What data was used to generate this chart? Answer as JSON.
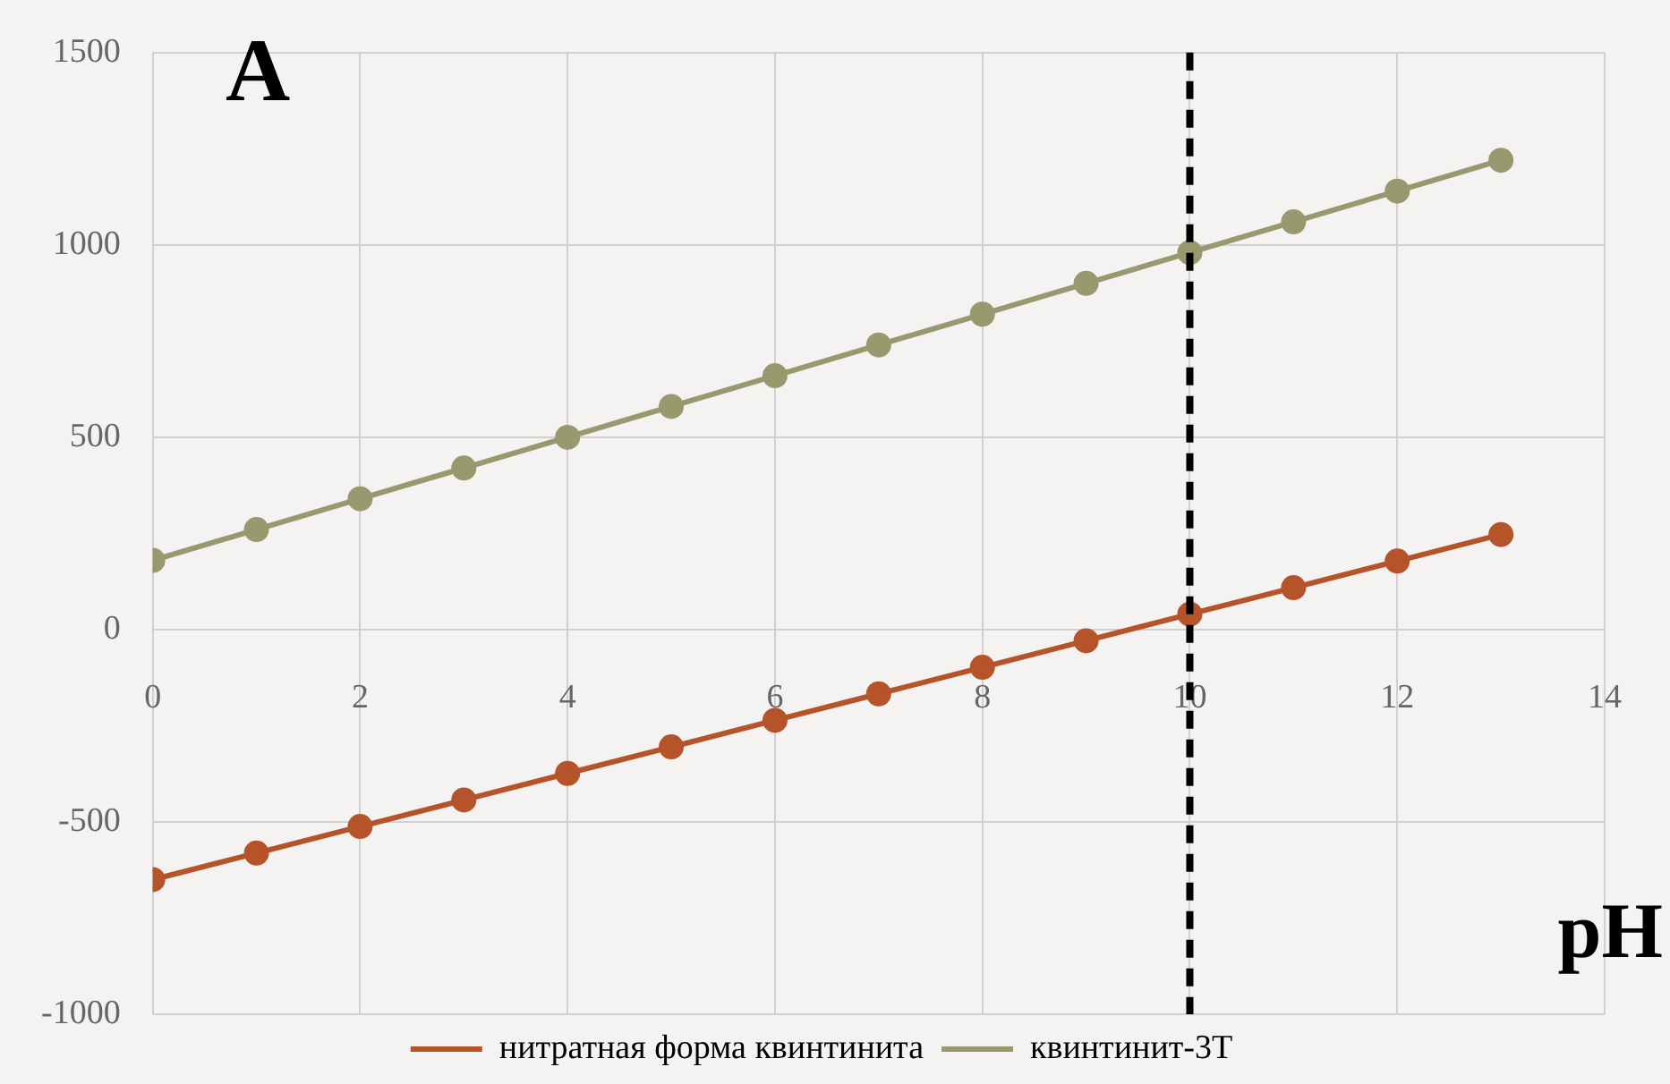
{
  "chart_data": {
    "type": "line",
    "xlabel": "pH",
    "annotations": [
      "A"
    ],
    "x": [
      0,
      1,
      2,
      3,
      4,
      5,
      6,
      7,
      8,
      9,
      10,
      11,
      12,
      13
    ],
    "series": [
      {
        "name": "нитратная форма квинтинита",
        "color": "#b5532a",
        "values": [
          -650,
          -581,
          -512,
          -443,
          -374,
          -305,
          -236,
          -167,
          -98,
          -29,
          40,
          109,
          178,
          247
        ]
      },
      {
        "name": "квинтинит-3Т",
        "color": "#999970",
        "values": [
          180,
          260,
          340,
          420,
          500,
          580,
          660,
          740,
          820,
          900,
          980,
          1060,
          1140,
          1220
        ]
      }
    ],
    "xlim": [
      0,
      14
    ],
    "xticks": [
      0,
      2,
      4,
      6,
      8,
      10,
      12,
      14
    ],
    "ylim": [
      -1000,
      1500
    ],
    "yticks": [
      -1000,
      -500,
      0,
      500,
      1000,
      1500
    ],
    "ref_lines": [
      {
        "axis": "x",
        "value": 10,
        "color": "#000000",
        "line_style": "dashed"
      }
    ],
    "grid": true,
    "legend": "bottom",
    "marker": "circle",
    "line_style": "solid"
  }
}
